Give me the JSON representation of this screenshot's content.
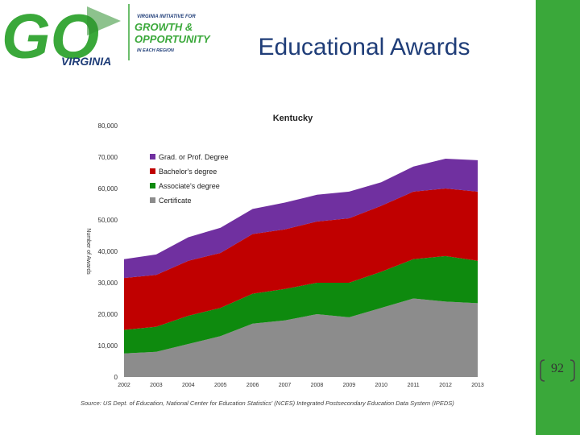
{
  "slide": {
    "title": "Educational Awards",
    "page_number": "92",
    "logo": {
      "wordmark": "GO",
      "sub_wordmark": "VIRGINIA",
      "tagline_top": "VIRGINIA INITIATIVE FOR",
      "tagline_line1": "GROWTH &",
      "tagline_line2": "OPPORTUNITY",
      "tagline_bottom": "IN EACH REGION"
    },
    "colors": {
      "sidebar": "#3aa83a",
      "title": "#1f3d78",
      "logo_green": "#3aa83a",
      "logo_navy": "#1f3d78"
    }
  },
  "chart_data": {
    "type": "area",
    "stacked": true,
    "title": "Kentucky",
    "ylabel": "Number of Awards",
    "ylim": [
      0,
      80000
    ],
    "yticks": [
      "0",
      "10,000",
      "20,000",
      "30,000",
      "40,000",
      "50,000",
      "60,000",
      "70,000",
      "80,000"
    ],
    "x": [
      "2002",
      "2003",
      "2004",
      "2005",
      "2006",
      "2007",
      "2008",
      "2009",
      "2010",
      "2011",
      "2012",
      "2013"
    ],
    "legend_position": "top-left",
    "series": [
      {
        "name": "Certificate",
        "color": "#8c8c8c",
        "values": [
          7500,
          8000,
          10500,
          13000,
          17000,
          18000,
          20000,
          19000,
          22000,
          25000,
          24000,
          23500
        ]
      },
      {
        "name": "Associate's degree",
        "color": "#0e8a0e",
        "values": [
          7500,
          8000,
          9000,
          9000,
          9500,
          10000,
          10000,
          11000,
          11500,
          12500,
          14500,
          13500
        ]
      },
      {
        "name": "Bachelor's degree",
        "color": "#c00000",
        "values": [
          16500,
          16500,
          17500,
          17500,
          19000,
          19000,
          19500,
          20500,
          21000,
          21500,
          21500,
          22000
        ]
      },
      {
        "name": "Grad. or Prof. Degree",
        "color": "#7030a0",
        "values": [
          6000,
          6500,
          7500,
          8000,
          8000,
          8500,
          8500,
          8500,
          7500,
          8000,
          9500,
          10000
        ]
      }
    ],
    "source": "Source: US Dept. of Education, National Center for Education Statistics' (NCES) Integrated Postsecondary Education Data System (IPEDS)"
  }
}
